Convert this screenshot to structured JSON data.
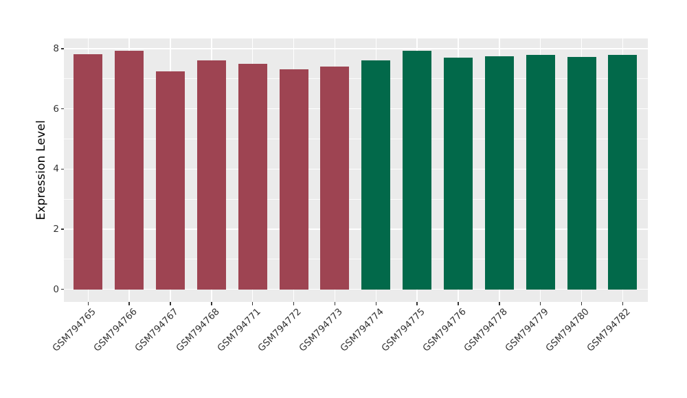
{
  "chart_data": {
    "type": "bar",
    "title": "",
    "xlabel": "",
    "ylabel": "Expression Level",
    "categories": [
      "GSM794765",
      "GSM794766",
      "GSM794767",
      "GSM794768",
      "GSM794771",
      "GSM794772",
      "GSM794773",
      "GSM794774",
      "GSM794775",
      "GSM794776",
      "GSM794778",
      "GSM794779",
      "GSM794780",
      "GSM794782"
    ],
    "values": [
      7.81,
      7.93,
      7.26,
      7.61,
      7.51,
      7.32,
      7.41,
      7.61,
      7.93,
      7.71,
      7.76,
      7.8,
      7.73,
      7.79
    ],
    "bar_colors": [
      "#9E4452",
      "#9E4452",
      "#9E4452",
      "#9E4452",
      "#9E4452",
      "#9E4452",
      "#9E4452",
      "#02694A",
      "#02694A",
      "#02694A",
      "#02694A",
      "#02694A",
      "#02694A",
      "#02694A"
    ],
    "yticks": [
      0,
      2,
      4,
      6,
      8
    ],
    "yticks_minor": [
      1,
      3,
      5,
      7
    ],
    "ylim": [
      -0.4,
      8.35
    ],
    "x_label_rotation": 45,
    "grid": true,
    "legend_position": "none",
    "colors": {
      "group_left": "#9E4452",
      "group_right": "#02694A",
      "panel_background": "#EBEBEB",
      "gridline": "#FFFFFF",
      "axis_text": "#333333",
      "figure_background": "#FFFFFF"
    }
  }
}
